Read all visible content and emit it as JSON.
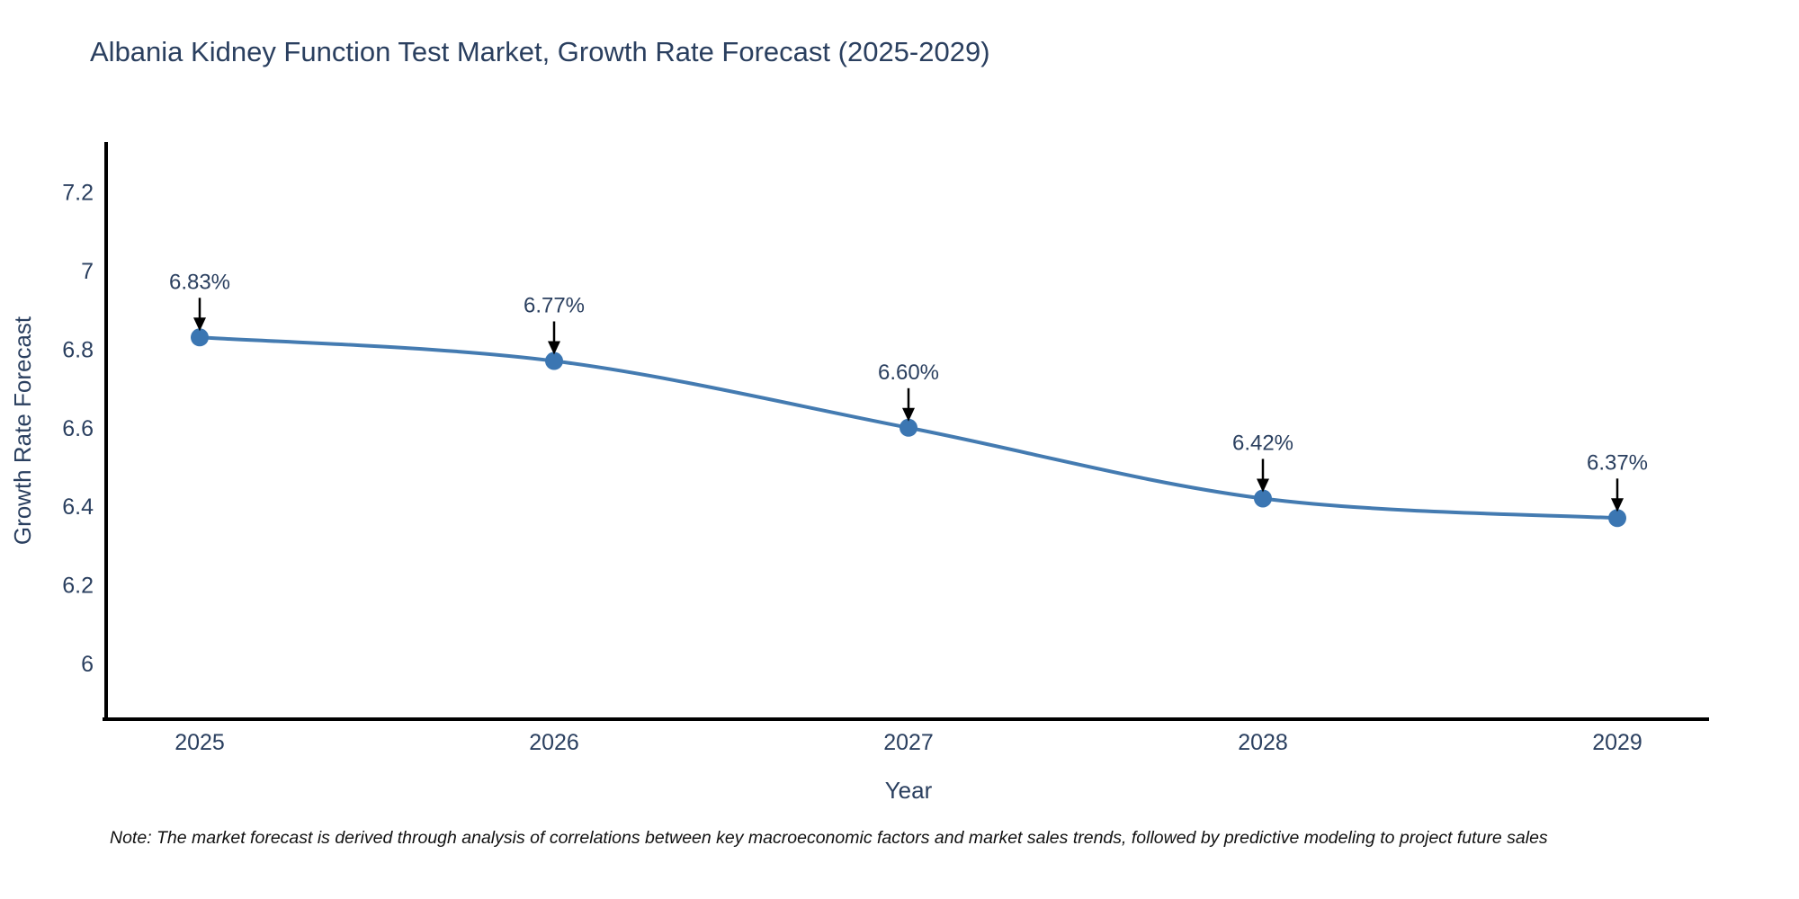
{
  "title": "Albania Kidney Function Test Market, Growth Rate Forecast (2025-2029)",
  "note": "Note: The market forecast is derived through analysis of correlations between key macroeconomic factors and market sales trends, followed by predictive modeling to project future sales",
  "chart_data": {
    "type": "line",
    "title": "Albania Kidney Function Test Market, Growth Rate Forecast (2025-2029)",
    "xlabel": "Year",
    "ylabel": "Growth Rate Forecast",
    "categories": [
      "2025",
      "2026",
      "2027",
      "2028",
      "2029"
    ],
    "values": [
      6.83,
      6.77,
      6.6,
      6.42,
      6.37
    ],
    "series": [
      {
        "name": "Growth Rate Forecast",
        "values": [
          6.83,
          6.77,
          6.6,
          6.42,
          6.37
        ]
      }
    ],
    "point_labels": [
      "6.83%",
      "6.77%",
      "6.60%",
      "6.42%",
      "6.37%"
    ],
    "y_ticks": [
      "6",
      "6.2",
      "6.4",
      "6.6",
      "6.8",
      "7",
      "7.2"
    ],
    "ylim": [
      5.86,
      7.33
    ],
    "grid": false,
    "legend": "none",
    "line_shape": "spline",
    "annotation_style": "value label above point with black arrow pointing down to marker",
    "colors": {
      "line": "#447bb1",
      "marker": "#3b76b2",
      "arrow": "#000000",
      "axis": "#000000",
      "text": "#2a3f5f",
      "note_text": "#111111",
      "background": "#ffffff"
    }
  }
}
